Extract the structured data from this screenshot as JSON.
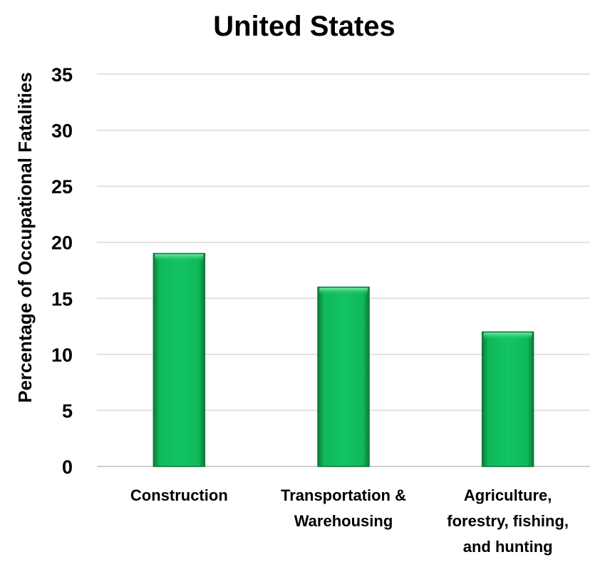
{
  "chart_data": {
    "type": "bar",
    "title": "United States",
    "xlabel": "",
    "ylabel": "Percentage of Occupational Fatalities",
    "categories": [
      [
        "Construction"
      ],
      [
        "Transportation &",
        "Warehousing"
      ],
      [
        "Agriculture,",
        "forestry, fishing,",
        "and hunting"
      ]
    ],
    "values": [
      19,
      16,
      12
    ],
    "ylim": [
      0,
      35
    ],
    "yticks": [
      0,
      5,
      10,
      15,
      20,
      25,
      30,
      35
    ],
    "grid": true,
    "legend": "none",
    "bar_color": "#0fbf5b",
    "bar_edge_color": "#0a7a3a"
  }
}
